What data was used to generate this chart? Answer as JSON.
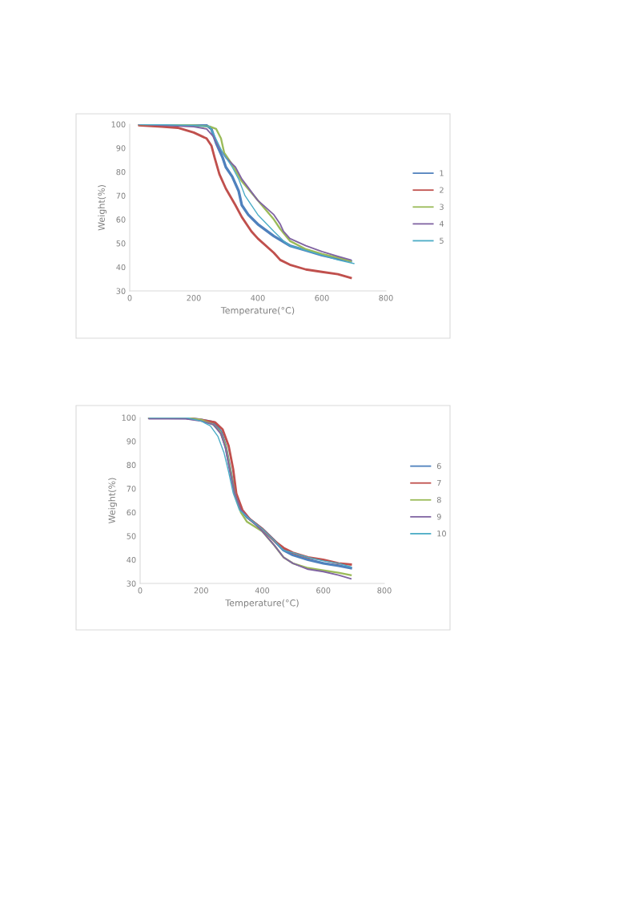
{
  "chart_data": [
    {
      "type": "line",
      "xlabel": "Temperature(°C)",
      "ylabel": "Weight(%)",
      "xlim": [
        0,
        800
      ],
      "ylim": [
        30,
        100
      ],
      "xticks": [
        0,
        200,
        400,
        600,
        800
      ],
      "yticks": [
        30,
        40,
        50,
        60,
        70,
        80,
        90,
        100
      ],
      "grid": false,
      "legend": "right",
      "series": [
        {
          "name": "1",
          "color": "#4f81bd",
          "x": [
            30,
            150,
            240,
            255,
            270,
            290,
            300,
            320,
            340,
            350,
            370,
            400,
            450,
            500,
            550,
            600,
            650,
            690
          ],
          "values": [
            100,
            99.8,
            99.5,
            98,
            92,
            86,
            82,
            78,
            72,
            66,
            62,
            58,
            53,
            49,
            47,
            45,
            43.5,
            42.5
          ]
        },
        {
          "name": "2",
          "color": "#c0504d",
          "x": [
            30,
            100,
            150,
            200,
            240,
            255,
            265,
            280,
            300,
            330,
            350,
            380,
            400,
            450,
            470,
            500,
            550,
            600,
            650,
            690
          ],
          "values": [
            99.5,
            99,
            98.5,
            96.5,
            94,
            91,
            86,
            79,
            73,
            66,
            61,
            55,
            52,
            46,
            43,
            41,
            39,
            38,
            37,
            35.5
          ]
        },
        {
          "name": "3",
          "color": "#9bbb59",
          "x": [
            30,
            200,
            250,
            270,
            285,
            295,
            320,
            350,
            400,
            450,
            470,
            500,
            550,
            600,
            650,
            690
          ],
          "values": [
            100,
            99.5,
            99,
            98,
            94,
            88,
            83,
            76,
            68,
            60,
            56,
            51,
            47.5,
            45.5,
            44,
            42.5
          ]
        },
        {
          "name": "4",
          "color": "#8064a2",
          "x": [
            30,
            200,
            240,
            260,
            280,
            300,
            330,
            350,
            400,
            450,
            470,
            480,
            500,
            550,
            600,
            650,
            690
          ],
          "values": [
            100,
            99,
            98,
            95,
            90,
            86,
            82,
            77,
            68,
            62,
            58,
            55,
            52,
            49,
            46.5,
            44.5,
            43
          ]
        },
        {
          "name": "5",
          "color": "#4bacc6",
          "x": [
            30,
            200,
            250,
            265,
            290,
            320,
            340,
            360,
            400,
            450,
            480,
            500,
            550,
            600,
            650,
            700
          ],
          "values": [
            100,
            99.5,
            99,
            95,
            88,
            82,
            77,
            70,
            62,
            55,
            51,
            49,
            47,
            45,
            43,
            41.5
          ]
        }
      ]
    },
    {
      "type": "line",
      "xlabel": "Temperature(°C)",
      "ylabel": "Weight(%)",
      "xlim": [
        0,
        800
      ],
      "ylim": [
        30,
        100
      ],
      "xticks": [
        0,
        200,
        400,
        600,
        800
      ],
      "yticks": [
        30,
        40,
        50,
        60,
        70,
        80,
        90,
        100
      ],
      "grid": false,
      "legend": "right",
      "series": [
        {
          "name": "6",
          "color": "#4f81bd",
          "x": [
            30,
            150,
            200,
            240,
            265,
            280,
            295,
            310,
            330,
            350,
            400,
            440,
            470,
            500,
            550,
            600,
            650,
            690
          ],
          "values": [
            100,
            99.8,
            99,
            98,
            94,
            88,
            78,
            68,
            61,
            58,
            53,
            48,
            44,
            42,
            40,
            38.5,
            37.5,
            36.5
          ]
        },
        {
          "name": "7",
          "color": "#c0504d",
          "x": [
            30,
            150,
            200,
            245,
            270,
            290,
            305,
            315,
            335,
            360,
            400,
            440,
            470,
            500,
            550,
            600,
            650,
            690
          ],
          "values": [
            100,
            99.8,
            99,
            98,
            95,
            88,
            78,
            68,
            61,
            57,
            53,
            48,
            45,
            43,
            41,
            40,
            38.5,
            38
          ]
        },
        {
          "name": "8",
          "color": "#9bbb59",
          "x": [
            30,
            150,
            200,
            240,
            262,
            280,
            295,
            310,
            330,
            350,
            400,
            440,
            470,
            500,
            550,
            600,
            650,
            690
          ],
          "values": [
            100,
            99.8,
            99,
            97,
            94,
            88,
            78,
            68,
            60,
            56,
            52,
            46,
            41,
            38.5,
            36.5,
            35.5,
            34.5,
            33.5
          ]
        },
        {
          "name": "9",
          "color": "#8064a2",
          "x": [
            30,
            150,
            200,
            240,
            265,
            280,
            295,
            310,
            330,
            360,
            400,
            440,
            470,
            500,
            550,
            600,
            650,
            690
          ],
          "values": [
            99.5,
            99.5,
            98.5,
            97,
            93,
            87,
            77,
            68,
            61,
            57,
            52,
            46,
            41,
            38.5,
            36,
            35,
            33.5,
            32
          ]
        },
        {
          "name": "10",
          "color": "#4bacc6",
          "x": [
            30,
            150,
            200,
            230,
            255,
            275,
            290,
            305,
            325,
            360,
            400,
            440,
            470,
            500,
            550,
            600,
            650,
            690
          ],
          "values": [
            100,
            100,
            98.5,
            96.5,
            92,
            85,
            77,
            68,
            61,
            57,
            53,
            48,
            44,
            43,
            41,
            39.5,
            38.5,
            37
          ]
        }
      ]
    }
  ]
}
